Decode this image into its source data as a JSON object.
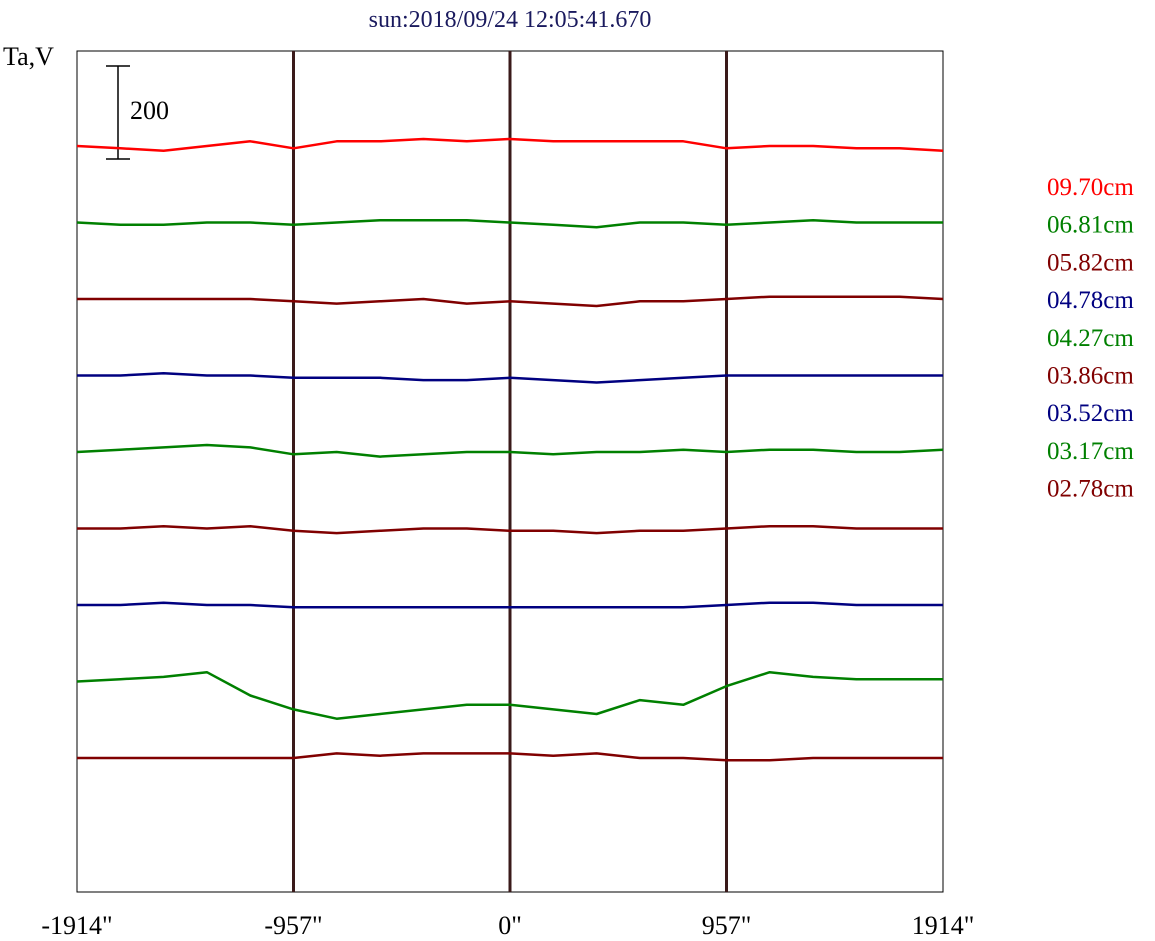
{
  "chart_data": {
    "type": "line",
    "title": "sun:2018/09/24 12:05:41.670",
    "ylabel": "Ta,V",
    "scale_bar_label": "200",
    "scale_bar_value": 200,
    "xlim": [
      -1914,
      1914
    ],
    "x_ticks": [
      {
        "value": -1914,
        "label": "-1914\""
      },
      {
        "value": -957,
        "label": "-957\""
      },
      {
        "value": 0,
        "label": "0\""
      },
      {
        "value": 957,
        "label": "957\""
      },
      {
        "value": 1914,
        "label": "1914\""
      }
    ],
    "vertical_lines": [
      -957,
      0,
      957
    ],
    "x": [
      -1914,
      -1722,
      -1531,
      -1340,
      -1148,
      -957,
      -766,
      -574,
      -383,
      -191,
      0,
      191,
      383,
      574,
      766,
      957,
      1148,
      1340,
      1531,
      1722,
      1914
    ],
    "series": [
      {
        "name": "09.70cm",
        "color": "#ff0000",
        "offset": 0,
        "values": [
          0,
          -5,
          -10,
          0,
          10,
          -5,
          10,
          10,
          15,
          10,
          15,
          10,
          10,
          10,
          10,
          -5,
          0,
          0,
          -5,
          -5,
          -10
        ]
      },
      {
        "name": "06.81cm",
        "color": "#008000",
        "offset": -1,
        "values": [
          0,
          -5,
          -5,
          0,
          0,
          -5,
          0,
          5,
          5,
          5,
          0,
          -5,
          -10,
          0,
          0,
          -5,
          0,
          5,
          0,
          0,
          0
        ]
      },
      {
        "name": "05.82cm",
        "color": "#800000",
        "offset": -2,
        "values": [
          0,
          0,
          0,
          0,
          0,
          -5,
          -10,
          -5,
          0,
          -10,
          -5,
          -10,
          -15,
          -5,
          -5,
          0,
          5,
          5,
          5,
          5,
          0
        ]
      },
      {
        "name": "04.78cm",
        "color": "#000080",
        "offset": -3,
        "values": [
          0,
          0,
          5,
          0,
          0,
          -5,
          -5,
          -5,
          -10,
          -10,
          -5,
          -10,
          -15,
          -10,
          -5,
          0,
          0,
          0,
          0,
          0,
          0
        ]
      },
      {
        "name": "04.27cm",
        "color": "#008000",
        "offset": -4,
        "values": [
          0,
          5,
          10,
          15,
          10,
          -5,
          0,
          -10,
          -5,
          0,
          0,
          -5,
          0,
          0,
          5,
          0,
          5,
          5,
          0,
          0,
          5
        ]
      },
      {
        "name": "03.86cm",
        "color": "#800000",
        "offset": -5,
        "values": [
          0,
          0,
          5,
          0,
          5,
          -5,
          -10,
          -5,
          0,
          0,
          -5,
          -5,
          -10,
          -5,
          -5,
          0,
          5,
          5,
          0,
          0,
          0
        ]
      },
      {
        "name": "03.52cm",
        "color": "#000080",
        "offset": -6,
        "values": [
          0,
          0,
          5,
          0,
          0,
          -5,
          -5,
          -5,
          -5,
          -5,
          -5,
          -5,
          -5,
          -5,
          -5,
          0,
          5,
          5,
          0,
          0,
          0
        ]
      },
      {
        "name": "03.17cm",
        "color": "#008000",
        "offset": -7,
        "values": [
          0,
          5,
          10,
          20,
          -30,
          -60,
          -80,
          -70,
          -60,
          -50,
          -50,
          -60,
          -70,
          -40,
          -50,
          -10,
          20,
          10,
          5,
          5,
          5
        ]
      },
      {
        "name": "02.78cm",
        "color": "#800000",
        "offset": -8,
        "values": [
          0,
          0,
          0,
          0,
          0,
          0,
          10,
          5,
          10,
          10,
          10,
          5,
          10,
          0,
          0,
          -5,
          -5,
          0,
          0,
          0,
          0
        ]
      }
    ],
    "legend_position": "right"
  }
}
